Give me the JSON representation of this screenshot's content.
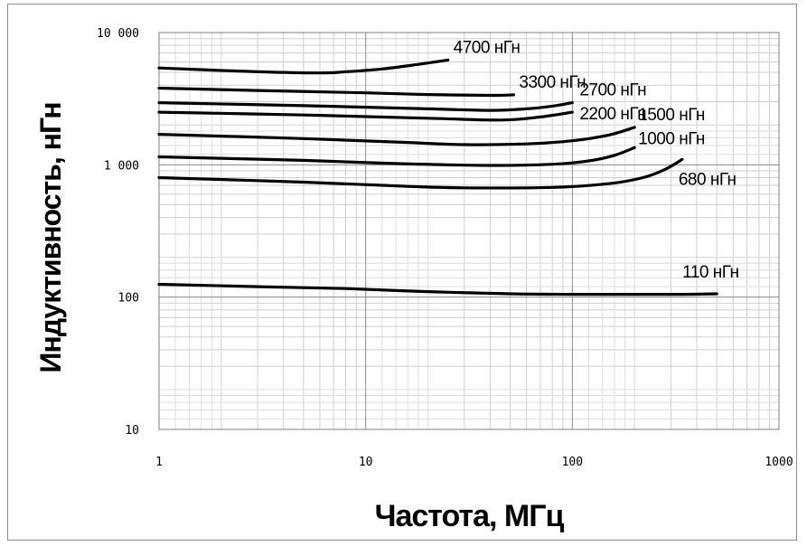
{
  "chart_data": {
    "type": "line",
    "xscale": "log",
    "yscale": "log",
    "xlim": [
      1,
      1000
    ],
    "ylim": [
      10,
      10000
    ],
    "grid": true,
    "xlabel": "Частота, МГц",
    "ylabel": "Индуктивность, нГн",
    "x_ticks": [
      "1",
      "10",
      "100",
      "1000"
    ],
    "y_ticks": [
      "10",
      "100",
      "1 000",
      "10 000"
    ],
    "series": [
      {
        "name": "4700 нГн",
        "points": [
          [
            1,
            5400
          ],
          [
            3,
            5050
          ],
          [
            6,
            4950
          ],
          [
            8,
            5050
          ],
          [
            12,
            5300
          ],
          [
            18,
            5750
          ],
          [
            25,
            6200
          ]
        ]
      },
      {
        "name": "3300 нГн",
        "points": [
          [
            1,
            3800
          ],
          [
            3,
            3650
          ],
          [
            10,
            3500
          ],
          [
            20,
            3400
          ],
          [
            40,
            3350
          ],
          [
            52,
            3380
          ]
        ]
      },
      {
        "name": "2700 нГн",
        "points": [
          [
            1,
            2950
          ],
          [
            5,
            2800
          ],
          [
            20,
            2650
          ],
          [
            40,
            2580
          ],
          [
            60,
            2650
          ],
          [
            80,
            2780
          ],
          [
            100,
            2950
          ]
        ]
      },
      {
        "name": "2200 нГн",
        "points": [
          [
            1,
            2500
          ],
          [
            5,
            2380
          ],
          [
            20,
            2250
          ],
          [
            45,
            2180
          ],
          [
            70,
            2300
          ],
          [
            100,
            2500
          ]
        ]
      },
      {
        "name": "1500 нГн",
        "points": [
          [
            1,
            1700
          ],
          [
            5,
            1580
          ],
          [
            15,
            1480
          ],
          [
            30,
            1420
          ],
          [
            60,
            1440
          ],
          [
            100,
            1520
          ],
          [
            150,
            1680
          ],
          [
            200,
            1920
          ]
        ]
      },
      {
        "name": "1000 нГн",
        "points": [
          [
            1,
            1150
          ],
          [
            5,
            1080
          ],
          [
            15,
            1020
          ],
          [
            40,
            990
          ],
          [
            80,
            1010
          ],
          [
            120,
            1070
          ],
          [
            160,
            1180
          ],
          [
            200,
            1350
          ]
        ]
      },
      {
        "name": "680 нГн",
        "points": [
          [
            1,
            800
          ],
          [
            5,
            740
          ],
          [
            15,
            690
          ],
          [
            30,
            670
          ],
          [
            80,
            675
          ],
          [
            150,
            720
          ],
          [
            220,
            800
          ],
          [
            280,
            920
          ],
          [
            340,
            1100
          ]
        ]
      },
      {
        "name": "110 нГн",
        "points": [
          [
            1,
            125
          ],
          [
            3,
            120
          ],
          [
            8,
            116
          ],
          [
            20,
            110
          ],
          [
            50,
            106
          ],
          [
            100,
            105
          ],
          [
            200,
            105
          ],
          [
            350,
            105
          ],
          [
            500,
            106
          ]
        ]
      }
    ]
  }
}
